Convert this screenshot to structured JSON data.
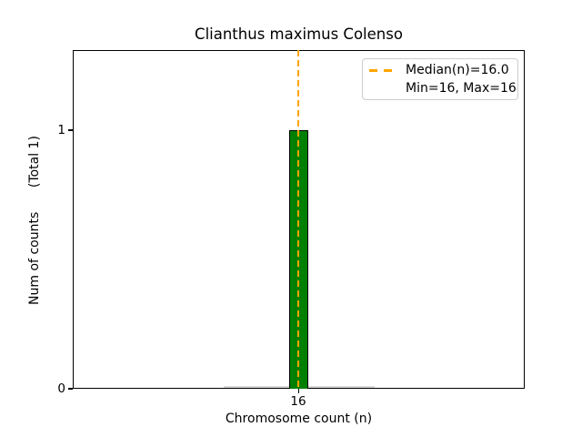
{
  "chart_data": {
    "type": "bar",
    "title": "Clianthus maximus Colenso",
    "xlabel": "Chromosome count (n)",
    "ylabel": "Num of counts      (Total 1)",
    "categories": [
      16
    ],
    "values": [
      1
    ],
    "total_counts": 1,
    "x_tick_labels": [
      "16"
    ],
    "y_tick_labels": [
      "0",
      "1"
    ],
    "ylim": [
      0,
      1.31
    ],
    "grid": false,
    "median_n": 16.0,
    "min_n": 16,
    "max_n": 16,
    "legend": {
      "position": "upper right",
      "items": [
        {
          "label": "Median(n)=16.0",
          "marker": "orange-dashed-line"
        },
        {
          "label": "Min=16, Max=16",
          "marker": "none"
        }
      ]
    },
    "colors": {
      "bar_fill": "#008000",
      "bar_edge": "#000000",
      "median_line": "#FFA500",
      "zero_count_bins": "#d9d9d9",
      "axes": "#000000",
      "background": "#ffffff"
    }
  }
}
